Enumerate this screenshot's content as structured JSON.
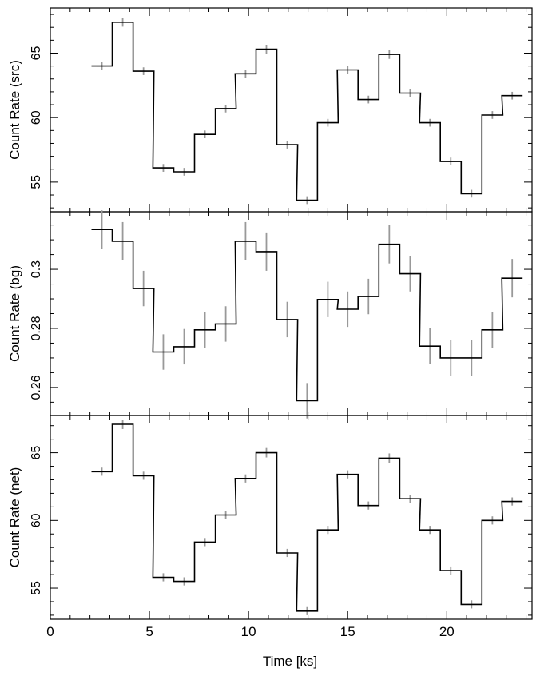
{
  "chart_data": [
    {
      "type": "line",
      "step": true,
      "name": "src",
      "ylabel": "Count Rate (src)",
      "ylim": [
        52.7,
        68.5
      ],
      "yticks": [
        55,
        60,
        65
      ],
      "xlim": [
        0,
        24.3
      ],
      "x": [
        2.6,
        3.65,
        4.7,
        5.7,
        6.75,
        7.8,
        8.85,
        9.85,
        10.9,
        11.95,
        12.95,
        14.0,
        15.0,
        16.05,
        17.1,
        18.15,
        19.15,
        20.2,
        21.25,
        22.3,
        23.3
      ],
      "values": [
        64.0,
        67.4,
        63.6,
        56.1,
        55.8,
        58.7,
        60.7,
        63.4,
        65.3,
        57.9,
        53.6,
        59.6,
        63.7,
        61.4,
        64.9,
        61.9,
        59.6,
        56.6,
        54.1,
        60.2,
        61.7
      ],
      "errors": [
        0.3,
        0.35,
        0.3,
        0.3,
        0.3,
        0.3,
        0.3,
        0.3,
        0.35,
        0.3,
        0.3,
        0.3,
        0.3,
        0.3,
        0.35,
        0.3,
        0.3,
        0.3,
        0.3,
        0.3,
        0.3
      ]
    },
    {
      "type": "line",
      "step": true,
      "name": "bg",
      "ylabel": "Count Rate (bg)",
      "ylim": [
        0.2505,
        0.3195
      ],
      "yticks": [
        0.26,
        0.28,
        0.3
      ],
      "ytick_labels": [
        "0.26",
        "0.28",
        "0.3"
      ],
      "xlim": [
        0,
        24.3
      ],
      "x": [
        2.6,
        3.65,
        4.7,
        5.7,
        6.75,
        7.8,
        8.85,
        9.85,
        10.9,
        11.95,
        12.95,
        14.0,
        15.0,
        16.05,
        17.1,
        18.15,
        19.15,
        20.2,
        21.25,
        22.3,
        23.3
      ],
      "values": [
        0.3135,
        0.3095,
        0.2935,
        0.272,
        0.2738,
        0.2795,
        0.2815,
        0.3095,
        0.306,
        0.283,
        0.2555,
        0.2898,
        0.2865,
        0.2908,
        0.3085,
        0.2985,
        0.274,
        0.27,
        0.27,
        0.2795,
        0.297
      ],
      "errors": [
        0.0065,
        0.0065,
        0.006,
        0.006,
        0.006,
        0.006,
        0.006,
        0.0065,
        0.0065,
        0.006,
        0.006,
        0.006,
        0.006,
        0.006,
        0.0065,
        0.006,
        0.006,
        0.006,
        0.006,
        0.006,
        0.0065
      ]
    },
    {
      "type": "line",
      "step": true,
      "name": "net",
      "ylabel": "Count Rate (net)",
      "ylim": [
        52.7,
        67.75
      ],
      "yticks": [
        55,
        60,
        65
      ],
      "xlim": [
        0,
        24.3
      ],
      "xticks": [
        0,
        5,
        10,
        15,
        20
      ],
      "xlabel": "Time [ks]",
      "x": [
        2.6,
        3.65,
        4.7,
        5.7,
        6.75,
        7.8,
        8.85,
        9.85,
        10.9,
        11.95,
        12.95,
        14.0,
        15.0,
        16.05,
        17.1,
        18.15,
        19.15,
        20.2,
        21.25,
        22.3,
        23.3
      ],
      "values": [
        63.6,
        67.1,
        63.3,
        55.8,
        55.5,
        58.4,
        60.4,
        63.1,
        65.0,
        57.6,
        53.3,
        59.3,
        63.4,
        61.1,
        64.6,
        61.6,
        59.3,
        56.3,
        53.8,
        60.0,
        61.4
      ],
      "errors": [
        0.3,
        0.35,
        0.3,
        0.3,
        0.3,
        0.3,
        0.3,
        0.3,
        0.35,
        0.3,
        0.3,
        0.3,
        0.3,
        0.3,
        0.35,
        0.3,
        0.3,
        0.3,
        0.3,
        0.3,
        0.3
      ]
    }
  ],
  "colors": {
    "step_line": "#000000",
    "error_bar": "#999999",
    "axes": "#000000"
  }
}
